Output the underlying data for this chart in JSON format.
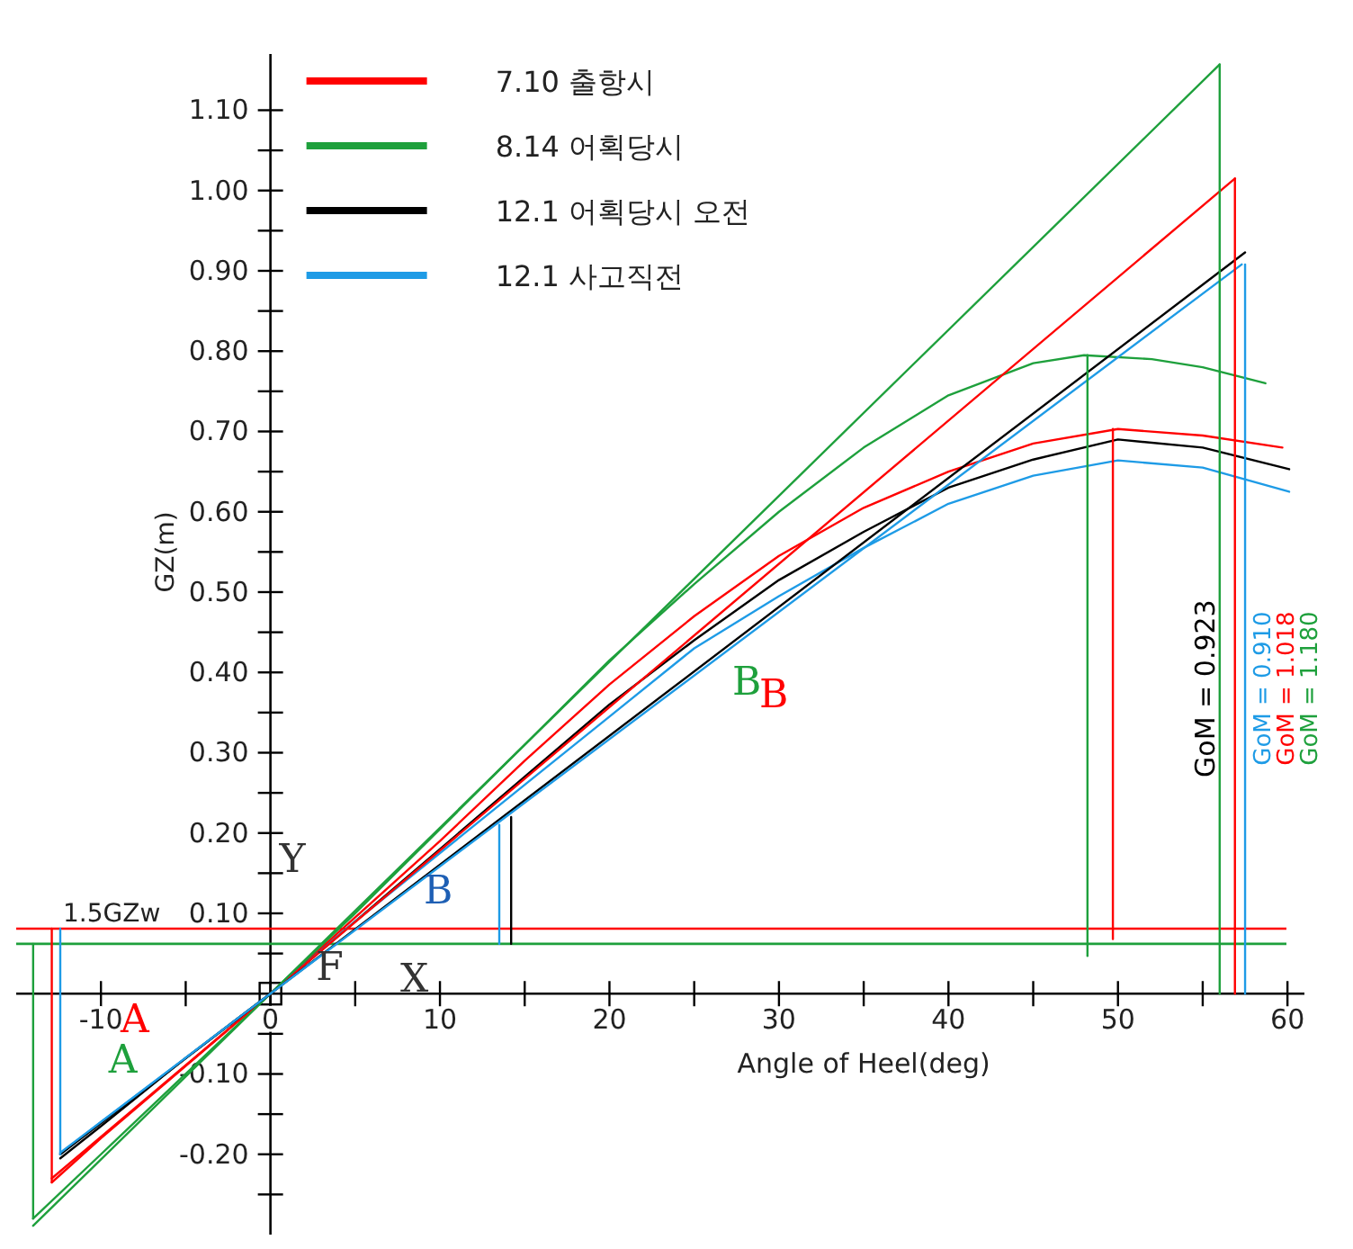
{
  "chart_data": {
    "type": "line",
    "xlabel": "Angle of Heel(deg)",
    "ylabel": "GZ(m)",
    "xlim": [
      -15,
      61
    ],
    "ylim": [
      -0.3,
      1.17
    ],
    "xticks": [
      {
        "value": -10,
        "label": "-10"
      },
      {
        "value": -5,
        "label": null
      },
      0,
      {
        "value": 5,
        "label": null
      },
      10,
      {
        "value": 15,
        "label": null
      },
      20,
      {
        "value": 25,
        "label": null
      },
      30,
      {
        "value": 35,
        "label": null
      },
      40,
      {
        "value": 45,
        "label": null
      },
      50,
      {
        "value": 55,
        "label": null
      },
      60
    ],
    "yticks": [
      {
        "value": -0.25,
        "label": null
      },
      {
        "value": -0.2,
        "label": "-0.20"
      },
      {
        "value": -0.15,
        "label": null
      },
      {
        "value": -0.1,
        "label": "-0.10"
      },
      {
        "value": -0.05,
        "label": null
      },
      {
        "value": 0.05,
        "label": null
      },
      {
        "value": 0.1,
        "label": "0.10"
      },
      {
        "value": 0.15,
        "label": null
      },
      {
        "value": 0.2,
        "label": "0.20"
      },
      {
        "value": 0.25,
        "label": null
      },
      {
        "value": 0.3,
        "label": "0.30"
      },
      {
        "value": 0.35,
        "label": null
      },
      {
        "value": 0.4,
        "label": "0.40"
      },
      {
        "value": 0.45,
        "label": null
      },
      {
        "value": 0.5,
        "label": "0.50"
      },
      {
        "value": 0.55,
        "label": null
      },
      {
        "value": 0.6,
        "label": "0.60"
      },
      {
        "value": 0.65,
        "label": null
      },
      {
        "value": 0.7,
        "label": "0.70"
      },
      {
        "value": 0.75,
        "label": null
      },
      {
        "value": 0.8,
        "label": "0.80"
      },
      {
        "value": 0.85,
        "label": null
      },
      {
        "value": 0.9,
        "label": "0.90"
      },
      {
        "value": 0.95,
        "label": null
      },
      {
        "value": 1.0,
        "label": "1.00"
      },
      {
        "value": 1.05,
        "label": null
      },
      {
        "value": 1.1,
        "label": "1.10"
      }
    ],
    "grid": false,
    "legend": "top left",
    "marker": "none",
    "line_style": "solid",
    "series": [
      {
        "name": "7.10 출항시",
        "color": "#ff0000",
        "x": [
          -12.9,
          -10,
          -5,
          0,
          5,
          10,
          15,
          20,
          25,
          30,
          35,
          40,
          45,
          50,
          55,
          59.7
        ],
        "values": [
          -0.235,
          -0.18,
          -0.09,
          0,
          0.095,
          0.19,
          0.29,
          0.385,
          0.47,
          0.545,
          0.605,
          0.65,
          0.685,
          0.703,
          0.695,
          0.68
        ]
      },
      {
        "name": "8.14 어획당시",
        "color": "#1ea03c",
        "x": [
          -14,
          -10,
          -5,
          0,
          5,
          10,
          15,
          20,
          25,
          30,
          35,
          40,
          45,
          48,
          52,
          55,
          58.7
        ],
        "values": [
          -0.28,
          -0.2,
          -0.1,
          0,
          0.1,
          0.205,
          0.31,
          0.415,
          0.51,
          0.6,
          0.68,
          0.745,
          0.785,
          0.795,
          0.79,
          0.78,
          0.76
        ]
      },
      {
        "name": "12.1 어획당시 오전",
        "color": "#000000",
        "x": [
          -12.4,
          -10,
          -5,
          0,
          5,
          10,
          15,
          20,
          25,
          30,
          35,
          40,
          45,
          50,
          55,
          60.1
        ],
        "values": [
          -0.205,
          -0.165,
          -0.08,
          0,
          0.09,
          0.18,
          0.27,
          0.36,
          0.44,
          0.515,
          0.575,
          0.63,
          0.665,
          0.69,
          0.68,
          0.653
        ]
      },
      {
        "name": "12.1 사고직전",
        "color": "#1e9be6",
        "x": [
          -12.4,
          -10,
          -5,
          0,
          5,
          10,
          15,
          20,
          25,
          30,
          35,
          40,
          45,
          50,
          55,
          60.1
        ],
        "values": [
          -0.2,
          -0.16,
          -0.08,
          0,
          0.09,
          0.175,
          0.26,
          0.345,
          0.43,
          0.495,
          0.555,
          0.61,
          0.645,
          0.664,
          0.655,
          0.625
        ]
      },
      {
        "color": "#ff0000",
        "x": [
          -12.9,
          0,
          56.9
        ],
        "values": [
          -0.23,
          0,
          1.015
        ]
      },
      {
        "color": "#1ea03c",
        "x": [
          -14,
          0,
          56
        ],
        "values": [
          -0.289,
          0,
          1.157
        ]
      },
      {
        "color": "#000000",
        "x": [
          -12.4,
          0,
          57.5
        ],
        "values": [
          -0.2,
          0,
          0.923
        ]
      },
      {
        "color": "#1e9be6",
        "x": [
          -12.4,
          0,
          57.3
        ],
        "values": [
          -0.198,
          0,
          0.908
        ]
      },
      {
        "color": "#1ea03c",
        "x": [
          56,
          56
        ],
        "values": [
          0,
          1.157
        ]
      },
      {
        "color": "#ff0000",
        "x": [
          56.9,
          56.9
        ],
        "values": [
          0,
          1.015
        ]
      },
      {
        "color": "#1e9be6",
        "x": [
          57.5,
          57.5
        ],
        "values": [
          0,
          0.908
        ]
      },
      {
        "color": "#1ea03c",
        "x": [
          48.2,
          48.2
        ],
        "values": [
          0.047,
          0.795
        ]
      },
      {
        "color": "#ff0000",
        "x": [
          49.7,
          49.7
        ],
        "values": [
          0.068,
          0.703
        ]
      },
      {
        "color": "#000000",
        "x": [
          14.2,
          14.2
        ],
        "values": [
          0.062,
          0.22
        ]
      },
      {
        "color": "#1e9be6",
        "x": [
          13.5,
          13.5
        ],
        "values": [
          0.062,
          0.21
        ]
      },
      {
        "color": "#1ea03c",
        "x": [
          -14,
          -14
        ],
        "values": [
          0.062,
          -0.28
        ]
      },
      {
        "color": "#ff0000",
        "x": [
          -12.9,
          -12.9
        ],
        "values": [
          0.081,
          -0.235
        ]
      },
      {
        "color": "#1e9be6",
        "x": [
          -12.4,
          -12.4
        ],
        "values": [
          0.081,
          -0.2
        ]
      }
    ],
    "ref_lines": [
      {
        "axis": "y",
        "value": 0.081,
        "label": "1.5GZw",
        "color": "#ff0000"
      },
      {
        "axis": "y",
        "value": 0.062,
        "color": "#1ea03c"
      }
    ],
    "annotations": [
      "A",
      "A",
      "B",
      "B",
      "B",
      "Y",
      "F",
      "X",
      "GoM = 0.923",
      "GoM = 0.910",
      "GoM = 1.018",
      "GoM = 1.180"
    ]
  }
}
